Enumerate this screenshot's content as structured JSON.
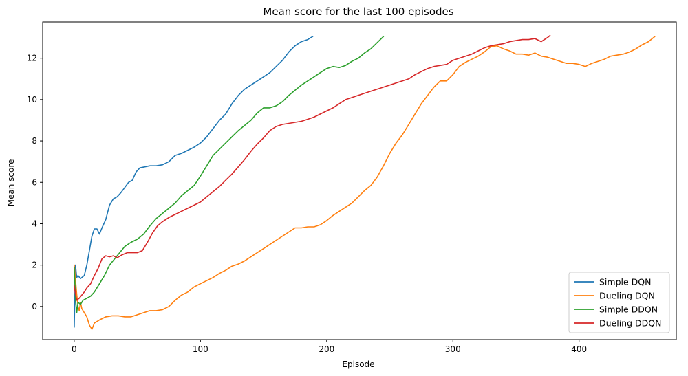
{
  "chart_data": {
    "type": "line",
    "title": "Mean score for the last 100 episodes",
    "xlabel": "Episode",
    "ylabel": "Mean score",
    "xlim": [
      -25,
      477
    ],
    "ylim": [
      -1.6,
      13.75
    ],
    "xticks": [
      0,
      100,
      200,
      300,
      400
    ],
    "yticks": [
      0,
      2,
      4,
      6,
      8,
      10,
      12
    ],
    "grid": false,
    "legend_position": "bottom-right",
    "series": [
      {
        "name": "Simple DQN",
        "color": "#1f77b4",
        "points": [
          [
            0,
            -1.0
          ],
          [
            1,
            2.0
          ],
          [
            2,
            1.4
          ],
          [
            3,
            1.5
          ],
          [
            5,
            1.35
          ],
          [
            8,
            1.5
          ],
          [
            10,
            2.0
          ],
          [
            12,
            2.7
          ],
          [
            14,
            3.4
          ],
          [
            16,
            3.75
          ],
          [
            18,
            3.75
          ],
          [
            20,
            3.5
          ],
          [
            22,
            3.8
          ],
          [
            25,
            4.2
          ],
          [
            28,
            4.9
          ],
          [
            31,
            5.2
          ],
          [
            34,
            5.3
          ],
          [
            37,
            5.5
          ],
          [
            40,
            5.75
          ],
          [
            43,
            6.0
          ],
          [
            46,
            6.1
          ],
          [
            49,
            6.5
          ],
          [
            52,
            6.7
          ],
          [
            56,
            6.75
          ],
          [
            60,
            6.8
          ],
          [
            65,
            6.8
          ],
          [
            70,
            6.85
          ],
          [
            75,
            7.0
          ],
          [
            80,
            7.3
          ],
          [
            85,
            7.4
          ],
          [
            90,
            7.55
          ],
          [
            95,
            7.7
          ],
          [
            100,
            7.9
          ],
          [
            105,
            8.2
          ],
          [
            110,
            8.6
          ],
          [
            115,
            9.0
          ],
          [
            120,
            9.3
          ],
          [
            125,
            9.8
          ],
          [
            130,
            10.2
          ],
          [
            135,
            10.5
          ],
          [
            140,
            10.7
          ],
          [
            145,
            10.9
          ],
          [
            150,
            11.1
          ],
          [
            155,
            11.3
          ],
          [
            160,
            11.6
          ],
          [
            165,
            11.9
          ],
          [
            170,
            12.3
          ],
          [
            175,
            12.6
          ],
          [
            180,
            12.8
          ],
          [
            185,
            12.9
          ],
          [
            189,
            13.05
          ]
        ]
      },
      {
        "name": "Dueling DQN",
        "color": "#ff7f0e",
        "points": [
          [
            0,
            2.0
          ],
          [
            1,
            1.3
          ],
          [
            2,
            0.6
          ],
          [
            3,
            0.0
          ],
          [
            4,
            -0.2
          ],
          [
            5,
            0.2
          ],
          [
            6,
            -0.1
          ],
          [
            8,
            -0.3
          ],
          [
            10,
            -0.5
          ],
          [
            12,
            -0.9
          ],
          [
            14,
            -1.1
          ],
          [
            16,
            -0.8
          ],
          [
            20,
            -0.65
          ],
          [
            25,
            -0.5
          ],
          [
            30,
            -0.45
          ],
          [
            35,
            -0.45
          ],
          [
            40,
            -0.5
          ],
          [
            45,
            -0.5
          ],
          [
            50,
            -0.4
          ],
          [
            55,
            -0.3
          ],
          [
            60,
            -0.2
          ],
          [
            65,
            -0.2
          ],
          [
            70,
            -0.15
          ],
          [
            75,
            0.0
          ],
          [
            80,
            0.3
          ],
          [
            85,
            0.55
          ],
          [
            90,
            0.7
          ],
          [
            95,
            0.95
          ],
          [
            100,
            1.1
          ],
          [
            105,
            1.25
          ],
          [
            110,
            1.4
          ],
          [
            115,
            1.6
          ],
          [
            120,
            1.75
          ],
          [
            125,
            1.95
          ],
          [
            130,
            2.05
          ],
          [
            135,
            2.2
          ],
          [
            140,
            2.4
          ],
          [
            145,
            2.6
          ],
          [
            150,
            2.8
          ],
          [
            155,
            3.0
          ],
          [
            160,
            3.2
          ],
          [
            165,
            3.4
          ],
          [
            170,
            3.6
          ],
          [
            175,
            3.8
          ],
          [
            180,
            3.8
          ],
          [
            185,
            3.85
          ],
          [
            190,
            3.85
          ],
          [
            195,
            3.95
          ],
          [
            200,
            4.15
          ],
          [
            205,
            4.4
          ],
          [
            210,
            4.6
          ],
          [
            215,
            4.8
          ],
          [
            220,
            5.0
          ],
          [
            225,
            5.3
          ],
          [
            230,
            5.6
          ],
          [
            235,
            5.85
          ],
          [
            240,
            6.25
          ],
          [
            245,
            6.8
          ],
          [
            250,
            7.4
          ],
          [
            255,
            7.9
          ],
          [
            260,
            8.3
          ],
          [
            265,
            8.8
          ],
          [
            270,
            9.3
          ],
          [
            275,
            9.8
          ],
          [
            280,
            10.2
          ],
          [
            285,
            10.6
          ],
          [
            290,
            10.9
          ],
          [
            295,
            10.9
          ],
          [
            300,
            11.2
          ],
          [
            305,
            11.6
          ],
          [
            310,
            11.8
          ],
          [
            315,
            11.95
          ],
          [
            320,
            12.1
          ],
          [
            325,
            12.3
          ],
          [
            330,
            12.55
          ],
          [
            335,
            12.6
          ],
          [
            340,
            12.45
          ],
          [
            345,
            12.35
          ],
          [
            350,
            12.2
          ],
          [
            355,
            12.2
          ],
          [
            360,
            12.15
          ],
          [
            365,
            12.25
          ],
          [
            370,
            12.1
          ],
          [
            375,
            12.05
          ],
          [
            380,
            11.95
          ],
          [
            385,
            11.85
          ],
          [
            390,
            11.75
          ],
          [
            395,
            11.75
          ],
          [
            400,
            11.7
          ],
          [
            405,
            11.6
          ],
          [
            410,
            11.75
          ],
          [
            415,
            11.85
          ],
          [
            420,
            11.95
          ],
          [
            425,
            12.1
          ],
          [
            430,
            12.15
          ],
          [
            435,
            12.2
          ],
          [
            440,
            12.3
          ],
          [
            445,
            12.45
          ],
          [
            450,
            12.65
          ],
          [
            455,
            12.8
          ],
          [
            460,
            13.05
          ]
        ]
      },
      {
        "name": "Simple DDQN",
        "color": "#2ca02c",
        "points": [
          [
            0,
            1.9
          ],
          [
            1,
            0.4
          ],
          [
            2,
            -0.3
          ],
          [
            3,
            0.2
          ],
          [
            5,
            0.1
          ],
          [
            7,
            0.3
          ],
          [
            10,
            0.4
          ],
          [
            13,
            0.5
          ],
          [
            16,
            0.7
          ],
          [
            20,
            1.1
          ],
          [
            24,
            1.5
          ],
          [
            28,
            2.0
          ],
          [
            32,
            2.3
          ],
          [
            36,
            2.6
          ],
          [
            40,
            2.9
          ],
          [
            45,
            3.1
          ],
          [
            50,
            3.25
          ],
          [
            55,
            3.5
          ],
          [
            60,
            3.9
          ],
          [
            65,
            4.25
          ],
          [
            70,
            4.5
          ],
          [
            75,
            4.75
          ],
          [
            80,
            5.0
          ],
          [
            85,
            5.35
          ],
          [
            90,
            5.6
          ],
          [
            95,
            5.85
          ],
          [
            100,
            6.3
          ],
          [
            105,
            6.8
          ],
          [
            110,
            7.3
          ],
          [
            115,
            7.6
          ],
          [
            120,
            7.9
          ],
          [
            125,
            8.2
          ],
          [
            130,
            8.5
          ],
          [
            135,
            8.75
          ],
          [
            140,
            9.0
          ],
          [
            145,
            9.35
          ],
          [
            150,
            9.6
          ],
          [
            155,
            9.6
          ],
          [
            160,
            9.7
          ],
          [
            165,
            9.9
          ],
          [
            170,
            10.2
          ],
          [
            175,
            10.45
          ],
          [
            180,
            10.7
          ],
          [
            185,
            10.9
          ],
          [
            190,
            11.1
          ],
          [
            195,
            11.3
          ],
          [
            200,
            11.5
          ],
          [
            205,
            11.6
          ],
          [
            210,
            11.55
          ],
          [
            215,
            11.65
          ],
          [
            220,
            11.85
          ],
          [
            225,
            12.0
          ],
          [
            230,
            12.25
          ],
          [
            235,
            12.45
          ],
          [
            240,
            12.75
          ],
          [
            245,
            13.05
          ]
        ]
      },
      {
        "name": "Dueling DDQN",
        "color": "#d62728",
        "points": [
          [
            0,
            1.0
          ],
          [
            1,
            0.6
          ],
          [
            2,
            0.3
          ],
          [
            4,
            0.4
          ],
          [
            6,
            0.55
          ],
          [
            8,
            0.7
          ],
          [
            10,
            0.9
          ],
          [
            13,
            1.1
          ],
          [
            16,
            1.5
          ],
          [
            19,
            1.85
          ],
          [
            22,
            2.3
          ],
          [
            25,
            2.45
          ],
          [
            28,
            2.4
          ],
          [
            31,
            2.45
          ],
          [
            34,
            2.35
          ],
          [
            38,
            2.5
          ],
          [
            42,
            2.6
          ],
          [
            46,
            2.6
          ],
          [
            50,
            2.6
          ],
          [
            54,
            2.7
          ],
          [
            58,
            3.1
          ],
          [
            62,
            3.55
          ],
          [
            66,
            3.9
          ],
          [
            70,
            4.1
          ],
          [
            75,
            4.3
          ],
          [
            80,
            4.45
          ],
          [
            85,
            4.6
          ],
          [
            90,
            4.75
          ],
          [
            95,
            4.9
          ],
          [
            100,
            5.05
          ],
          [
            105,
            5.3
          ],
          [
            110,
            5.55
          ],
          [
            115,
            5.8
          ],
          [
            120,
            6.1
          ],
          [
            125,
            6.4
          ],
          [
            130,
            6.75
          ],
          [
            135,
            7.1
          ],
          [
            140,
            7.5
          ],
          [
            145,
            7.85
          ],
          [
            150,
            8.15
          ],
          [
            155,
            8.5
          ],
          [
            160,
            8.7
          ],
          [
            165,
            8.8
          ],
          [
            170,
            8.85
          ],
          [
            175,
            8.9
          ],
          [
            180,
            8.95
          ],
          [
            185,
            9.05
          ],
          [
            190,
            9.15
          ],
          [
            195,
            9.3
          ],
          [
            200,
            9.45
          ],
          [
            205,
            9.6
          ],
          [
            210,
            9.8
          ],
          [
            215,
            10.0
          ],
          [
            220,
            10.1
          ],
          [
            225,
            10.2
          ],
          [
            230,
            10.3
          ],
          [
            235,
            10.4
          ],
          [
            240,
            10.5
          ],
          [
            245,
            10.6
          ],
          [
            250,
            10.7
          ],
          [
            255,
            10.8
          ],
          [
            260,
            10.9
          ],
          [
            265,
            11.0
          ],
          [
            270,
            11.2
          ],
          [
            275,
            11.35
          ],
          [
            280,
            11.5
          ],
          [
            285,
            11.6
          ],
          [
            290,
            11.65
          ],
          [
            295,
            11.7
          ],
          [
            300,
            11.9
          ],
          [
            305,
            12.0
          ],
          [
            310,
            12.1
          ],
          [
            315,
            12.2
          ],
          [
            320,
            12.35
          ],
          [
            325,
            12.5
          ],
          [
            330,
            12.6
          ],
          [
            335,
            12.65
          ],
          [
            340,
            12.7
          ],
          [
            345,
            12.8
          ],
          [
            350,
            12.85
          ],
          [
            355,
            12.9
          ],
          [
            360,
            12.9
          ],
          [
            365,
            12.95
          ],
          [
            370,
            12.8
          ],
          [
            375,
            13.0
          ],
          [
            377,
            13.1
          ]
        ]
      }
    ]
  }
}
